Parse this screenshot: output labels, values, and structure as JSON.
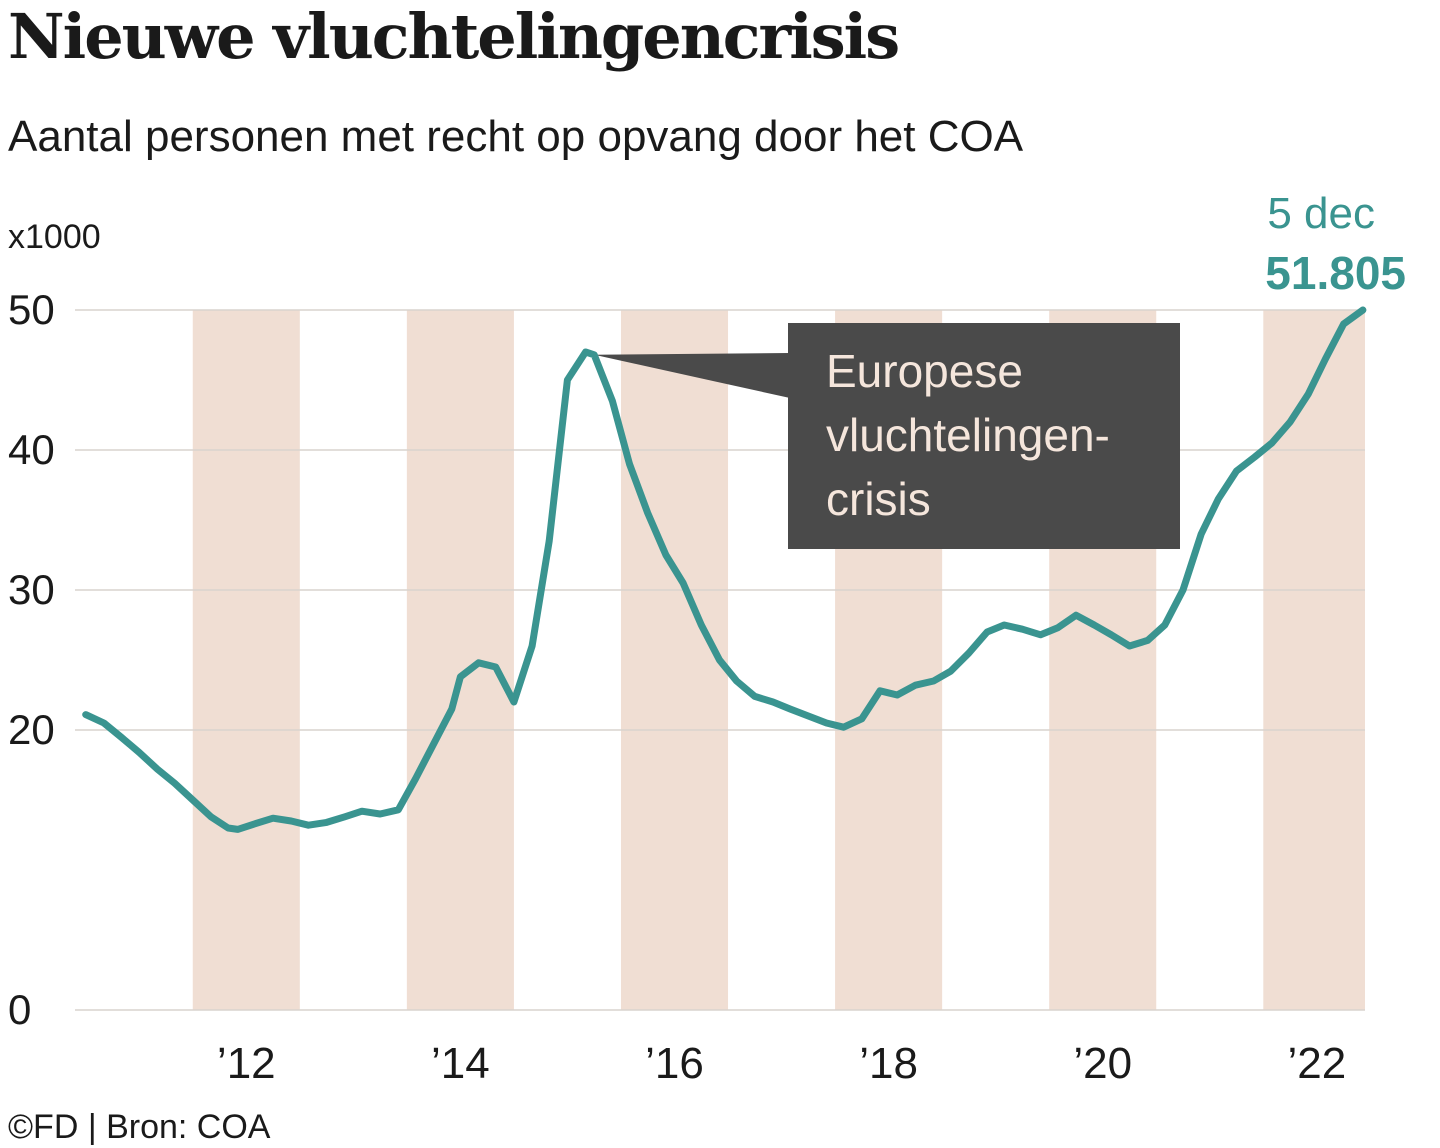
{
  "title": "Nieuwe vluchtelingencrisis",
  "subtitle": "Aantal personen met recht op opvang door het COA",
  "footer": "©FD | Bron: COA",
  "colors": {
    "line": "#3a9490",
    "band": "#f0ded3",
    "grid": "#d9d3ce",
    "callout_bg": "#4a4a4a",
    "callout_text": "#f5e6dc",
    "text": "#1a1a1a"
  },
  "chart_data": {
    "type": "line",
    "unit_label": "x1000",
    "ylim": [
      0,
      50
    ],
    "y_ticks": [
      0,
      20,
      30,
      40,
      50
    ],
    "y_tick_labels": [
      "0",
      "20",
      "30",
      "40",
      "50"
    ],
    "x_tick_labels": [
      "’12",
      "’14",
      "’16",
      "’18",
      "’20",
      "’22"
    ],
    "x_tick_years": [
      2012,
      2014,
      2016,
      2018,
      2020,
      2022
    ],
    "xlim": [
      2010.9,
      2022.95
    ],
    "shaded_years": [
      2012,
      2014,
      2016,
      2018,
      2020,
      2022
    ],
    "grid": true,
    "series": [
      {
        "x": [
          2011.0,
          2011.17,
          2011.33,
          2011.5,
          2011.67,
          2011.83,
          2012.0,
          2012.17,
          2012.33,
          2012.42,
          2012.58,
          2012.75,
          2012.92,
          2013.08,
          2013.25,
          2013.42,
          2013.58,
          2013.75,
          2013.92,
          2014.08,
          2014.25,
          2014.42,
          2014.5,
          2014.67,
          2014.83,
          2015.0,
          2015.17,
          2015.33,
          2015.5,
          2015.67,
          2015.75,
          2015.92,
          2016.08,
          2016.25,
          2016.42,
          2016.58,
          2016.75,
          2016.92,
          2017.08,
          2017.25,
          2017.42,
          2017.58,
          2017.75,
          2017.92,
          2018.08,
          2018.25,
          2018.42,
          2018.58,
          2018.75,
          2018.92,
          2019.08,
          2019.25,
          2019.42,
          2019.58,
          2019.75,
          2019.92,
          2020.08,
          2020.25,
          2020.42,
          2020.58,
          2020.75,
          2020.92,
          2021.08,
          2021.25,
          2021.42,
          2021.58,
          2021.75,
          2021.92,
          2022.08,
          2022.25,
          2022.42,
          2022.58,
          2022.75,
          2022.93
        ],
        "y": [
          21.1,
          20.5,
          19.5,
          18.4,
          17.2,
          16.2,
          15.0,
          13.8,
          13.0,
          12.9,
          13.3,
          13.7,
          13.5,
          13.2,
          13.4,
          13.8,
          14.2,
          14.0,
          14.3,
          16.5,
          19.0,
          21.5,
          23.8,
          24.8,
          24.5,
          22.0,
          26.0,
          33.5,
          45.0,
          47.0,
          46.8,
          43.5,
          39.0,
          35.5,
          32.5,
          30.5,
          27.5,
          25.0,
          23.5,
          22.4,
          22.0,
          21.5,
          21.0,
          20.5,
          20.2,
          20.8,
          22.8,
          22.5,
          23.2,
          23.5,
          24.2,
          25.5,
          27.0,
          27.5,
          27.2,
          26.8,
          27.3,
          28.2,
          27.5,
          26.8,
          26.0,
          26.4,
          27.5,
          30.0,
          34.0,
          36.5,
          38.5,
          39.5,
          40.5,
          42.0,
          44.0,
          46.5,
          49.0,
          51.805
        ]
      }
    ],
    "endpoint_date": "5 dec",
    "endpoint_value": "51.805",
    "annotation": {
      "lines": [
        "Europese",
        "vluchtelingen-",
        "crisis"
      ],
      "x": 2015.75,
      "y": 46.8
    }
  }
}
